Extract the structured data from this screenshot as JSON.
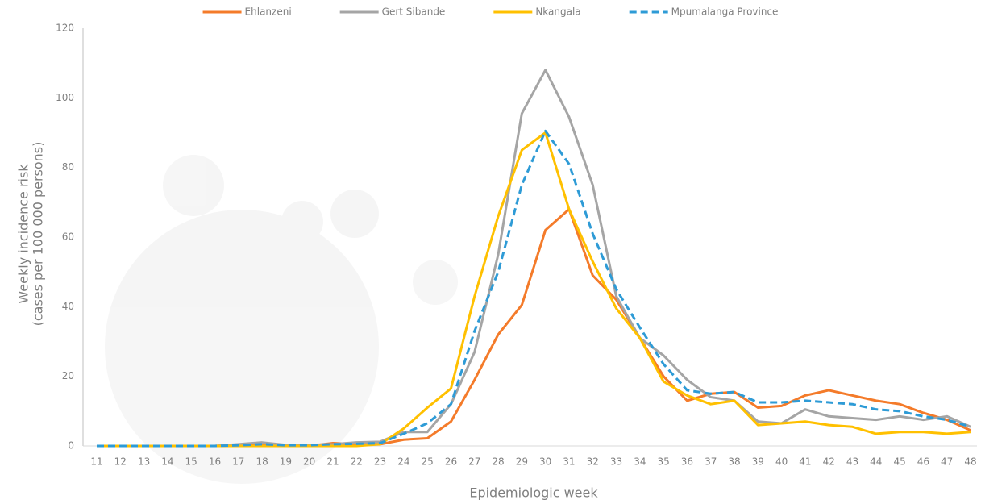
{
  "chart_data": {
    "type": "line",
    "xlabel": "Epidemiologic week",
    "ylabel": [
      "Weekly incidence risk",
      "(cases per 100 000 persons)"
    ],
    "categories": [
      "11",
      "12",
      "13",
      "14",
      "15",
      "16",
      "17",
      "18",
      "19",
      "20",
      "21",
      "22",
      "23",
      "24",
      "25",
      "26",
      "27",
      "28",
      "29",
      "30",
      "31",
      "32",
      "33",
      "34",
      "35",
      "36",
      "37",
      "38",
      "39",
      "40",
      "41",
      "42",
      "43",
      "44",
      "45",
      "46",
      "47",
      "48"
    ],
    "ylim": [
      0,
      120
    ],
    "yticks": [
      0,
      20,
      40,
      60,
      80,
      100,
      120
    ],
    "legend": "top",
    "series": [
      {
        "name": "Ehlanzeni",
        "color": "#f47b2a",
        "dashed": false,
        "values": [
          0,
          0,
          0,
          0,
          0,
          0,
          0.3,
          0.5,
          0,
          0,
          0.8,
          0.5,
          0.5,
          1.8,
          2.2,
          7,
          19,
          32,
          40.5,
          62,
          68,
          49,
          42,
          31,
          20,
          13,
          15,
          15.5,
          11,
          11.5,
          14.5,
          16,
          14.5,
          13,
          12,
          9.5,
          7.5,
          4.5
        ]
      },
      {
        "name": "Gert Sibande",
        "color": "#a5a5a5",
        "dashed": false,
        "values": [
          0,
          0,
          0,
          0,
          0,
          0,
          0.5,
          1,
          0.3,
          0.3,
          0.5,
          1,
          1.2,
          4,
          4,
          12,
          27,
          55,
          95.5,
          108,
          94.5,
          75,
          43,
          31,
          26,
          19,
          14,
          13,
          7,
          6.5,
          10.5,
          8.5,
          8,
          7.5,
          8.5,
          7.5,
          8.5,
          5.5
        ]
      },
      {
        "name": "Nkangala",
        "color": "#ffc000",
        "dashed": false,
        "values": [
          0,
          0,
          0,
          0,
          0,
          0,
          0,
          0,
          0,
          0,
          0,
          0,
          0.5,
          5,
          11,
          16.5,
          43,
          66,
          85,
          90,
          68,
          53,
          39.5,
          31,
          18.5,
          14.5,
          12,
          13,
          6,
          6.5,
          7,
          6,
          5.5,
          3.5,
          4,
          4,
          3.5,
          4
        ]
      },
      {
        "name": "Mpumalanga Province",
        "color": "#2e9bd6",
        "dashed": true,
        "values": [
          0,
          0,
          0,
          0,
          0,
          0,
          0.2,
          0.5,
          0.2,
          0.2,
          0.5,
          0.6,
          0.8,
          3.5,
          6.5,
          12,
          33,
          50,
          75,
          90.5,
          81,
          61,
          45,
          34,
          23.5,
          16,
          15,
          15.5,
          12.5,
          12.5,
          13,
          12.5,
          12,
          10.5,
          10,
          8.5,
          7.5,
          5.5
        ]
      }
    ]
  }
}
